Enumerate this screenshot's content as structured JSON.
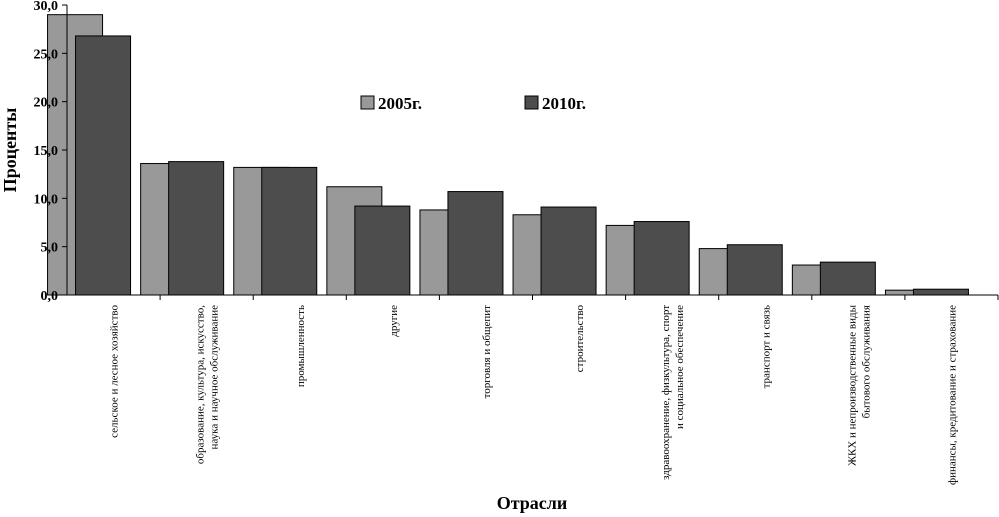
{
  "chart_data": {
    "type": "bar",
    "title": "",
    "xlabel": "Отрасли",
    "ylabel": "Проценты",
    "ylim": [
      0,
      30
    ],
    "yticks": [
      "0,0",
      "5,0",
      "10,0",
      "15,0",
      "20,0",
      "25,0",
      "30,0"
    ],
    "ytick_values": [
      0,
      5,
      10,
      15,
      20,
      25,
      30
    ],
    "grid": false,
    "legend_position": "top-center",
    "categories": [
      [
        "сельское и лесное хозяйство"
      ],
      [
        "образование, культура, искусство,",
        "наука и научное обслуживание"
      ],
      [
        "промышленность"
      ],
      [
        "другие"
      ],
      [
        "торговля и общепит"
      ],
      [
        "строительство"
      ],
      [
        "здравоохранение, физкультура, спорт",
        "и социальное обеспечение"
      ],
      [
        "транспорт и связь"
      ],
      [
        "ЖКХ и непроизводственные виды",
        "бытового обслуживания"
      ],
      [
        "финансы, кредитование и страхование"
      ]
    ],
    "series": [
      {
        "name": "2005г.",
        "color": "#999999",
        "values": [
          29.0,
          13.6,
          13.2,
          11.2,
          8.8,
          8.3,
          7.2,
          4.8,
          3.1,
          0.5
        ]
      },
      {
        "name": "2010г.",
        "color": "#4d4d4d",
        "values": [
          26.8,
          13.8,
          13.2,
          9.2,
          10.7,
          9.1,
          7.6,
          5.2,
          3.4,
          0.6
        ]
      }
    ]
  }
}
